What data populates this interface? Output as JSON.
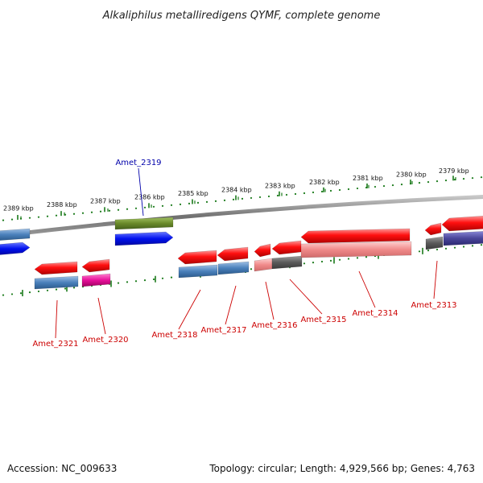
{
  "title": "Alkaliphilus metalliredigens QYMF, complete genome",
  "footer": {
    "accession": "Accession: NC_009633",
    "summary": "Topology: circular; Length: 4,929,566 bp; Genes: 4,763"
  },
  "colors": {
    "backbone": "#8a8a8a",
    "ticks": "#1a7a1a",
    "label_red": "#cc0000",
    "label_blue": "#0000aa"
  },
  "ruler": [
    {
      "label": "2389 kbp"
    },
    {
      "label": "2388 kbp"
    },
    {
      "label": "2387 kbp"
    },
    {
      "label": "2386 kbp"
    },
    {
      "label": "2385 kbp"
    },
    {
      "label": "2384 kbp"
    },
    {
      "label": "2383 kbp"
    },
    {
      "label": "2382 kbp"
    },
    {
      "label": "2381 kbp"
    },
    {
      "label": "2380 kbp"
    },
    {
      "label": "2379 kbp"
    }
  ],
  "genes": [
    {
      "name": "Amet_2321",
      "strand": "-",
      "color": "#ff1a1a",
      "label_color": "red"
    },
    {
      "name": "Amet_2320",
      "strand": "-",
      "color": "#ff1a1a",
      "label_color": "red"
    },
    {
      "name": "Amet_2319",
      "strand": "+",
      "color": "#0a1aff",
      "label_color": "blue"
    },
    {
      "name": "Amet_2318",
      "strand": "-",
      "color": "#ff1a1a",
      "label_color": "red"
    },
    {
      "name": "Amet_2317",
      "strand": "-",
      "color": "#ff1a1a",
      "label_color": "red"
    },
    {
      "name": "Amet_2316",
      "strand": "-",
      "color": "#ff1a1a",
      "label_color": "red"
    },
    {
      "name": "Amet_2315",
      "strand": "-",
      "color": "#ff1a1a",
      "label_color": "red"
    },
    {
      "name": "Amet_2314",
      "strand": "-",
      "color": "#ff1a1a",
      "label_color": "red"
    },
    {
      "name": "Amet_2313",
      "strand": "-",
      "color": "#ff1a1a",
      "label_color": "red"
    }
  ]
}
